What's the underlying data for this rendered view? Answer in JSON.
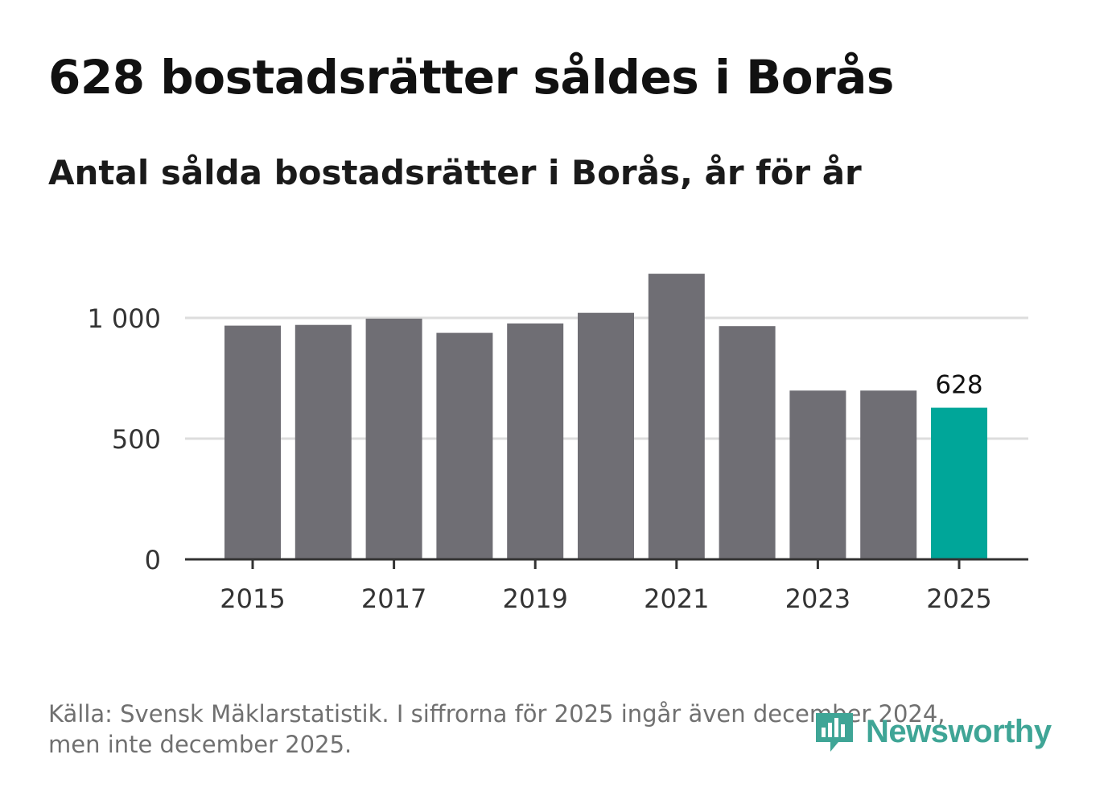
{
  "header": {
    "title": "628 bostadsrätter såldes i Borås",
    "subtitle": "Antal sålda bostadsrätter i Borås, år för år"
  },
  "footer": {
    "source_line1": "Källa: Svensk Mäklarstatistik. I siffrorna för 2025 ingår även december 2024,",
    "source_line2": "men inte december 2025.",
    "brand": "Newsworthy"
  },
  "colors": {
    "bar": "#6f6e74",
    "highlight": "#00a699",
    "grid": "#dddddd",
    "axis": "#333333",
    "brand": "#3fa596"
  },
  "chart_data": {
    "type": "bar",
    "title": "Antal sålda bostadsrätter i Borås, år för år",
    "xlabel": "",
    "ylabel": "",
    "categories": [
      "2015",
      "2016",
      "2017",
      "2018",
      "2019",
      "2020",
      "2021",
      "2022",
      "2023",
      "2024",
      "2025"
    ],
    "values": [
      968,
      971,
      997,
      938,
      977,
      1021,
      1183,
      966,
      699,
      699,
      628
    ],
    "highlight_index": 10,
    "data_labels": [
      {
        "index": 10,
        "text": "628"
      }
    ],
    "ylim": [
      0,
      1200
    ],
    "yticks": [
      0,
      500,
      1000
    ],
    "ytick_labels": [
      "0",
      "500",
      "1 000"
    ],
    "xticks": [
      "2015",
      "2017",
      "2019",
      "2021",
      "2023",
      "2025"
    ],
    "grid": true
  }
}
